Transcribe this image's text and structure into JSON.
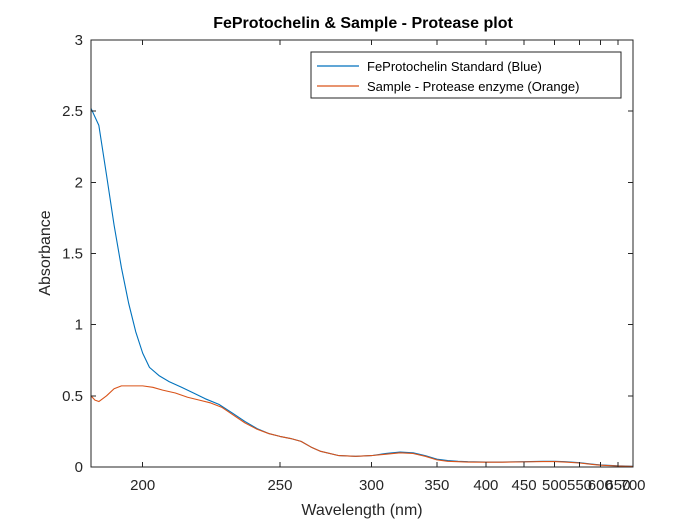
{
  "chart_data": {
    "type": "line",
    "title": "FeProtochelin & Sample - Protease plot",
    "xlabel": "Wavelength (nm)",
    "ylabel": "Absorbance",
    "xscale": "reciprocal",
    "xlim": [
      186,
      700
    ],
    "ylim": [
      0,
      3
    ],
    "xticks": [
      200,
      250,
      300,
      350,
      400,
      450,
      500,
      550,
      600,
      650,
      700
    ],
    "yticks": [
      0,
      0.5,
      1,
      1.5,
      2,
      2.5,
      3
    ],
    "xtick_labels": [
      "200",
      "250",
      "300",
      "350",
      "400",
      "450",
      "500",
      "550",
      "600",
      "650",
      "700"
    ],
    "ytick_labels": [
      "0",
      "0.5",
      "1",
      "1.5",
      "2",
      "2.5",
      "3"
    ],
    "grid": false,
    "box": true,
    "legend_position": "top-right",
    "series": [
      {
        "name": "FeProtochelin Standard (Blue)",
        "color": "#0072BD",
        "x": [
          186,
          188,
          190,
          192,
          194,
          196,
          198,
          200,
          202,
          205,
          208,
          212,
          216,
          220,
          225,
          230,
          235,
          240,
          245,
          250,
          255,
          260,
          265,
          270,
          280,
          290,
          300,
          310,
          320,
          330,
          340,
          350,
          360,
          370,
          380,
          400,
          420,
          450,
          480,
          500,
          520,
          550,
          580,
          600,
          650,
          700
        ],
        "y": [
          2.52,
          2.4,
          2.05,
          1.7,
          1.4,
          1.15,
          0.95,
          0.8,
          0.7,
          0.64,
          0.6,
          0.56,
          0.52,
          0.48,
          0.44,
          0.38,
          0.32,
          0.27,
          0.235,
          0.215,
          0.2,
          0.18,
          0.14,
          0.11,
          0.08,
          0.075,
          0.08,
          0.095,
          0.105,
          0.1,
          0.08,
          0.055,
          0.045,
          0.04,
          0.037,
          0.035,
          0.035,
          0.037,
          0.04,
          0.04,
          0.037,
          0.03,
          0.02,
          0.015,
          0.008,
          0.005
        ]
      },
      {
        "name": "Sample - Protease enzyme (Orange)",
        "color": "#D95319",
        "x": [
          186,
          187,
          188,
          189,
          190,
          192,
          194,
          196,
          198,
          200,
          203,
          206,
          210,
          214,
          218,
          222,
          226,
          230,
          235,
          240,
          245,
          250,
          255,
          260,
          265,
          270,
          280,
          290,
          300,
          310,
          320,
          330,
          340,
          350,
          360,
          370,
          380,
          400,
          420,
          450,
          480,
          500,
          520,
          550,
          580,
          600,
          650,
          700
        ],
        "y": [
          0.5,
          0.47,
          0.46,
          0.48,
          0.5,
          0.55,
          0.57,
          0.57,
          0.57,
          0.57,
          0.56,
          0.54,
          0.52,
          0.49,
          0.47,
          0.45,
          0.42,
          0.37,
          0.31,
          0.265,
          0.235,
          0.215,
          0.2,
          0.18,
          0.14,
          0.11,
          0.08,
          0.075,
          0.08,
          0.09,
          0.1,
          0.095,
          0.075,
          0.05,
          0.04,
          0.037,
          0.035,
          0.034,
          0.034,
          0.036,
          0.038,
          0.038,
          0.035,
          0.028,
          0.018,
          0.013,
          0.007,
          0.004
        ]
      }
    ]
  }
}
